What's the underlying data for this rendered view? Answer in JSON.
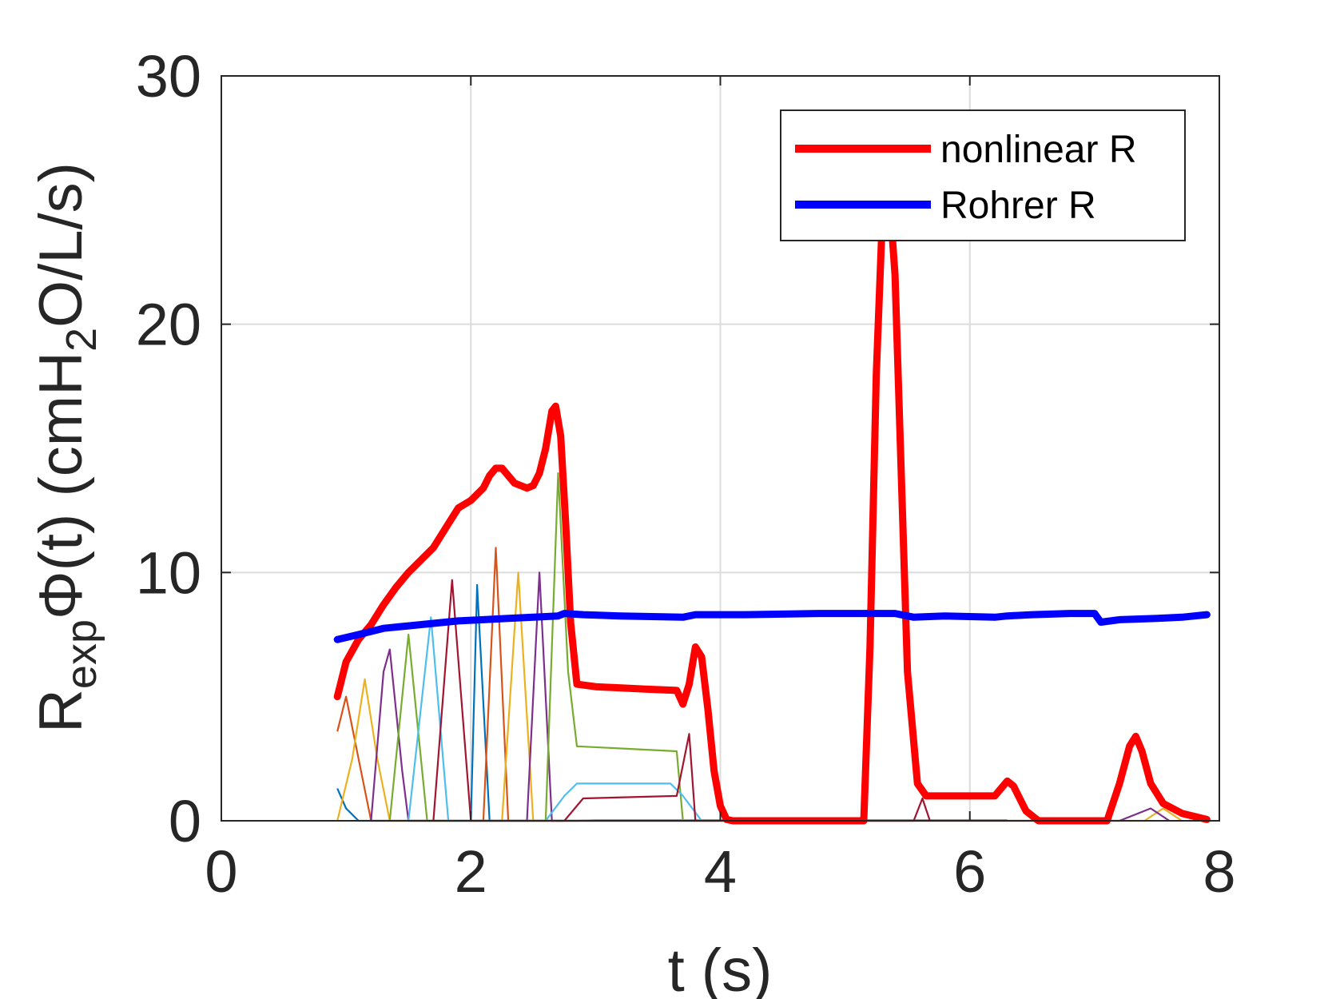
{
  "chart_data": {
    "type": "line",
    "xlabel": "t (s)",
    "ylabel": {
      "base": "R",
      "sub": "exp",
      "mid": "Φ(t) (cmH",
      "sub2": "2",
      "end": "O/L/s)"
    },
    "xlim": [
      0,
      8
    ],
    "ylim": [
      0,
      30
    ],
    "xticks": [
      0,
      2,
      4,
      6,
      8
    ],
    "yticks": [
      0,
      10,
      20,
      30
    ],
    "grid": true,
    "legend_position": "top-right",
    "series": [
      {
        "name": "nonlinear R",
        "color": "#ff0000",
        "points": [
          [
            0.93,
            5.0
          ],
          [
            1.0,
            6.4
          ],
          [
            1.1,
            7.3
          ],
          [
            1.2,
            7.9
          ],
          [
            1.3,
            8.7
          ],
          [
            1.4,
            9.4
          ],
          [
            1.5,
            10.0
          ],
          [
            1.6,
            10.5
          ],
          [
            1.7,
            11.0
          ],
          [
            1.8,
            11.8
          ],
          [
            1.9,
            12.6
          ],
          [
            2.0,
            12.9
          ],
          [
            2.1,
            13.4
          ],
          [
            2.15,
            13.9
          ],
          [
            2.2,
            14.2
          ],
          [
            2.25,
            14.2
          ],
          [
            2.3,
            13.9
          ],
          [
            2.35,
            13.6
          ],
          [
            2.45,
            13.4
          ],
          [
            2.5,
            13.5
          ],
          [
            2.55,
            14.0
          ],
          [
            2.6,
            15.0
          ],
          [
            2.65,
            16.5
          ],
          [
            2.68,
            16.7
          ],
          [
            2.72,
            15.5
          ],
          [
            2.76,
            12.0
          ],
          [
            2.8,
            8.0
          ],
          [
            2.85,
            5.5
          ],
          [
            3.0,
            5.4
          ],
          [
            3.4,
            5.3
          ],
          [
            3.65,
            5.25
          ],
          [
            3.7,
            4.7
          ],
          [
            3.75,
            5.5
          ],
          [
            3.8,
            7.0
          ],
          [
            3.85,
            6.6
          ],
          [
            3.9,
            4.5
          ],
          [
            3.95,
            2.0
          ],
          [
            4.0,
            0.6
          ],
          [
            4.05,
            0.05
          ],
          [
            4.1,
            0.0
          ],
          [
            5.15,
            0.0
          ],
          [
            5.2,
            7.0
          ],
          [
            5.25,
            18.0
          ],
          [
            5.3,
            24.5
          ],
          [
            5.35,
            25.5
          ],
          [
            5.4,
            22.0
          ],
          [
            5.45,
            14.0
          ],
          [
            5.5,
            6.0
          ],
          [
            5.58,
            1.5
          ],
          [
            5.65,
            1.0
          ],
          [
            6.2,
            1.0
          ],
          [
            6.3,
            1.6
          ],
          [
            6.35,
            1.4
          ],
          [
            6.45,
            0.4
          ],
          [
            6.55,
            0.0
          ],
          [
            7.1,
            0.0
          ],
          [
            7.2,
            1.5
          ],
          [
            7.28,
            3.0
          ],
          [
            7.33,
            3.4
          ],
          [
            7.38,
            2.8
          ],
          [
            7.45,
            1.5
          ],
          [
            7.55,
            0.7
          ],
          [
            7.7,
            0.3
          ],
          [
            7.9,
            0.05
          ]
        ]
      },
      {
        "name": "Rohrer R",
        "color": "#0000ff",
        "points": [
          [
            0.93,
            7.3
          ],
          [
            1.1,
            7.5
          ],
          [
            1.3,
            7.75
          ],
          [
            1.5,
            7.85
          ],
          [
            1.7,
            7.95
          ],
          [
            1.9,
            8.05
          ],
          [
            2.1,
            8.1
          ],
          [
            2.3,
            8.15
          ],
          [
            2.5,
            8.2
          ],
          [
            2.7,
            8.25
          ],
          [
            2.75,
            8.35
          ],
          [
            2.9,
            8.3
          ],
          [
            3.2,
            8.25
          ],
          [
            3.7,
            8.2
          ],
          [
            3.8,
            8.3
          ],
          [
            4.2,
            8.3
          ],
          [
            4.8,
            8.35
          ],
          [
            5.4,
            8.35
          ],
          [
            5.55,
            8.2
          ],
          [
            5.8,
            8.25
          ],
          [
            6.2,
            8.2
          ],
          [
            6.3,
            8.25
          ],
          [
            6.5,
            8.3
          ],
          [
            6.8,
            8.35
          ],
          [
            7.0,
            8.35
          ],
          [
            7.05,
            8.0
          ],
          [
            7.2,
            8.1
          ],
          [
            7.5,
            8.15
          ],
          [
            7.7,
            8.2
          ],
          [
            7.9,
            8.3
          ]
        ]
      }
    ],
    "component_curves": [
      {
        "color": "#0072bd",
        "points": [
          [
            0.93,
            1.3
          ],
          [
            1.0,
            0.5
          ],
          [
            1.1,
            0.0
          ],
          [
            2.0,
            0.0
          ],
          [
            2.05,
            9.5
          ],
          [
            2.15,
            0.0
          ],
          [
            3.8,
            0.0
          ]
        ]
      },
      {
        "color": "#d95319",
        "points": [
          [
            0.93,
            3.6
          ],
          [
            1.0,
            5.0
          ],
          [
            1.1,
            2.5
          ],
          [
            1.2,
            0.0
          ],
          [
            2.1,
            0.0
          ],
          [
            2.2,
            11.0
          ],
          [
            2.3,
            0.0
          ],
          [
            2.85,
            0.0
          ],
          [
            3.0,
            0.02
          ],
          [
            6.3,
            0.02
          ]
        ]
      },
      {
        "color": "#edb120",
        "points": [
          [
            0.93,
            0.0
          ],
          [
            1.05,
            2.5
          ],
          [
            1.15,
            5.7
          ],
          [
            1.25,
            2.5
          ],
          [
            1.35,
            0.0
          ],
          [
            2.25,
            0.0
          ],
          [
            2.38,
            10.0
          ],
          [
            2.5,
            0.0
          ],
          [
            7.4,
            0.0
          ],
          [
            7.55,
            0.5
          ],
          [
            7.7,
            0.0
          ]
        ]
      },
      {
        "color": "#7e2f8e",
        "points": [
          [
            1.2,
            0.0
          ],
          [
            1.3,
            6.0
          ],
          [
            1.35,
            6.9
          ],
          [
            1.45,
            2.0
          ],
          [
            1.5,
            0.0
          ],
          [
            2.45,
            0.0
          ],
          [
            2.55,
            10.0
          ],
          [
            2.65,
            0.0
          ],
          [
            7.2,
            0.0
          ],
          [
            7.45,
            0.5
          ],
          [
            7.6,
            0.0
          ]
        ]
      },
      {
        "color": "#77ac30",
        "points": [
          [
            1.35,
            0.0
          ],
          [
            1.5,
            7.5
          ],
          [
            1.65,
            0.0
          ],
          [
            2.6,
            0.0
          ],
          [
            2.7,
            14.0
          ],
          [
            2.78,
            6.0
          ],
          [
            2.85,
            3.0
          ],
          [
            3.65,
            2.8
          ],
          [
            3.7,
            0.0
          ]
        ]
      },
      {
        "color": "#4dbeee",
        "points": [
          [
            1.5,
            0.0
          ],
          [
            1.68,
            8.2
          ],
          [
            1.82,
            0.0
          ],
          [
            2.6,
            0.0
          ],
          [
            2.75,
            1.0
          ],
          [
            2.85,
            1.5
          ],
          [
            3.6,
            1.5
          ],
          [
            3.7,
            1.0
          ],
          [
            3.85,
            0.0
          ]
        ]
      },
      {
        "color": "#a2142f",
        "points": [
          [
            1.7,
            0.0
          ],
          [
            1.85,
            9.7
          ],
          [
            2.0,
            0.0
          ],
          [
            2.75,
            0.0
          ],
          [
            2.9,
            0.9
          ],
          [
            3.65,
            1.0
          ],
          [
            3.75,
            3.5
          ],
          [
            3.8,
            0.0
          ],
          [
            5.55,
            0.0
          ],
          [
            5.62,
            0.9
          ],
          [
            5.68,
            0.0
          ]
        ]
      }
    ]
  }
}
